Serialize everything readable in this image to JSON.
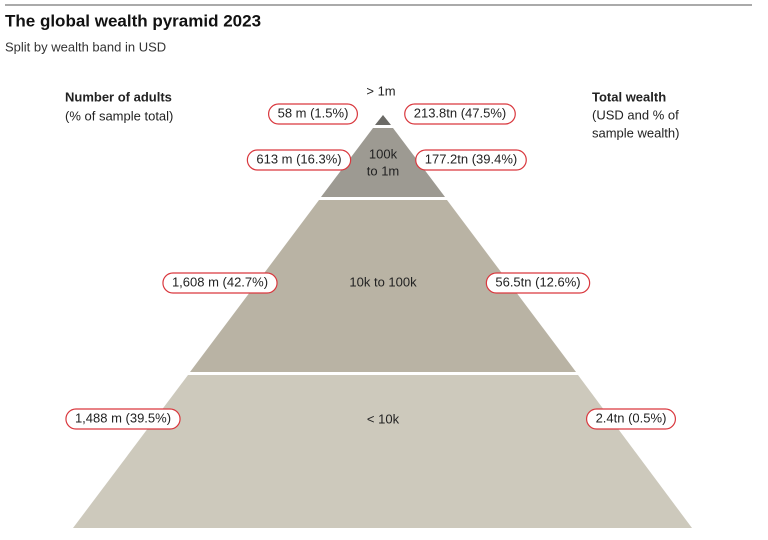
{
  "header": {
    "title": "The global wealth pyramid 2023",
    "subtitle": "Split by wealth band in USD"
  },
  "left_legend": {
    "title": "Number of adults",
    "note": "(% of sample total)"
  },
  "right_legend": {
    "title": "Total wealth",
    "note": [
      "(USD and % of",
      "sample wealth)"
    ]
  },
  "levels": [
    {
      "band": [
        "> 1m"
      ],
      "adults": "58 m (1.5%)",
      "wealth": "213.8tn (47.5%)"
    },
    {
      "band": [
        "100k",
        "to 1m"
      ],
      "adults": "613 m (16.3%)",
      "wealth": "177.2tn (39.4%)"
    },
    {
      "band": [
        "10k to 100k"
      ],
      "adults": "1,608 m (42.7%)",
      "wealth": "56.5tn (12.6%)"
    },
    {
      "band": [
        "< 10k"
      ],
      "adults": "1,488 m (39.5%)",
      "wealth": "2.4tn (0.5%)"
    }
  ]
}
